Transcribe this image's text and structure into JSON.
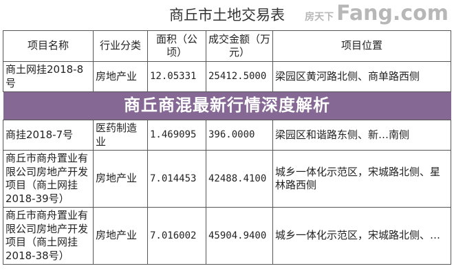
{
  "title": "商丘市土地交易表",
  "table": {
    "headers": [
      "项目名称",
      "行业分类",
      "面积（公顷）",
      "成交金额（万元）",
      "项目位置"
    ],
    "rows": [
      {
        "name": "商土网挂2018-8号",
        "industry": "房地产业",
        "area": "12.05331",
        "amount": "25412.5000",
        "location": "梁园区黄河路北侧、商单路西侧"
      },
      {
        "name": "商挂2018-7号",
        "industry": "医药制造业",
        "area": "1.469095",
        "amount": "396.0000",
        "location": "梁园区和谐路东侧、新…南侧"
      },
      {
        "name": "商丘市商舟置业有限公司房地产开发项目（商土网挂2018-39号）",
        "industry": "房地产业",
        "area": "7.014453",
        "amount": "42488.4100",
        "location": "城乡一体化示范区，宋城路北侧、星林路西侧"
      },
      {
        "name": "商丘市商舟置业有限公司房地产开发项目（商土网挂2018-38号）",
        "industry": "房地产业",
        "area": "7.016002",
        "amount": "45904.9400",
        "location": "城乡一体化示范区，宋城路北侧、…"
      }
    ]
  },
  "banner": "商丘商混最新行情深度解析",
  "watermark": {
    "cn": "房天下",
    "en": "Fang.com"
  }
}
